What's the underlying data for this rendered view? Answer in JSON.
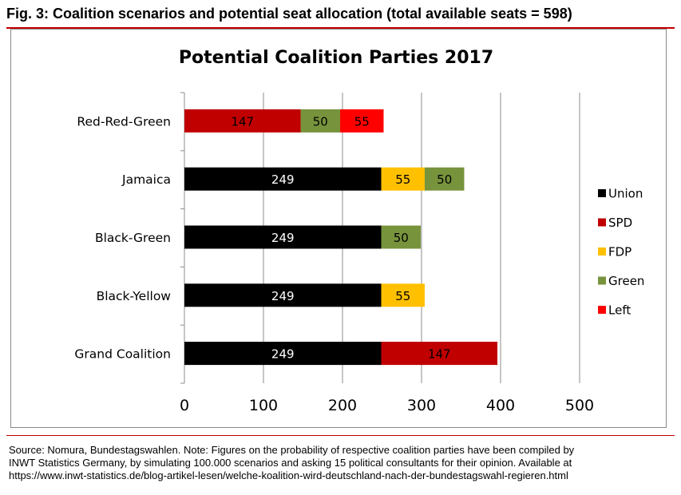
{
  "figure_title": "Fig. 3: Coalition scenarios and potential seat allocation (total available seats = 598)",
  "source_lines": [
    "Source: Nomura, Bundestagswahlen. Note: Figures on the probability of respective coalition parties have been compiled by",
    "INWT Statistics Germany, by simulating 100.000 scenarios and asking 15 political consultants for their opinion. Available at",
    "https://www.inwt-statistics.de/blog-artikel-lesen/welche-koalition-wird-deutschland-nach-der-bundestagswahl-regieren.html"
  ],
  "chart_data": {
    "type": "bar",
    "orientation": "horizontal",
    "stacked": true,
    "title": "Potential Coalition Parties 2017",
    "xlabel": "",
    "ylabel": "",
    "xlim": [
      0,
      500
    ],
    "xticks": [
      0,
      100,
      200,
      300,
      400,
      500
    ],
    "grid": "vertical",
    "legend_position": "right",
    "categories": [
      "Red-Red-Green",
      "Jamaica",
      "Black-Green",
      "Black-Yellow",
      "Grand Coalition"
    ],
    "series": [
      {
        "name": "Union",
        "color": "#000000",
        "label_color": "#ffffff",
        "values": [
          0,
          249,
          249,
          249,
          249
        ]
      },
      {
        "name": "SPD",
        "color": "#c00000",
        "label_color": "#000000",
        "values": [
          147,
          0,
          0,
          0,
          147
        ]
      },
      {
        "name": "FDP",
        "color": "#ffc000",
        "label_color": "#000000",
        "values": [
          0,
          55,
          0,
          55,
          0
        ]
      },
      {
        "name": "Green",
        "color": "#77933c",
        "label_color": "#000000",
        "values": [
          50,
          50,
          50,
          0,
          0
        ]
      },
      {
        "name": "Left",
        "color": "#ff0000",
        "label_color": "#000000",
        "values": [
          55,
          0,
          0,
          0,
          0
        ]
      }
    ],
    "segment_order": [
      [
        "SPD",
        "Green",
        "Left"
      ],
      [
        "Union",
        "FDP",
        "Green"
      ],
      [
        "Union",
        "Green"
      ],
      [
        "Union",
        "FDP"
      ],
      [
        "Union",
        "SPD"
      ]
    ]
  }
}
